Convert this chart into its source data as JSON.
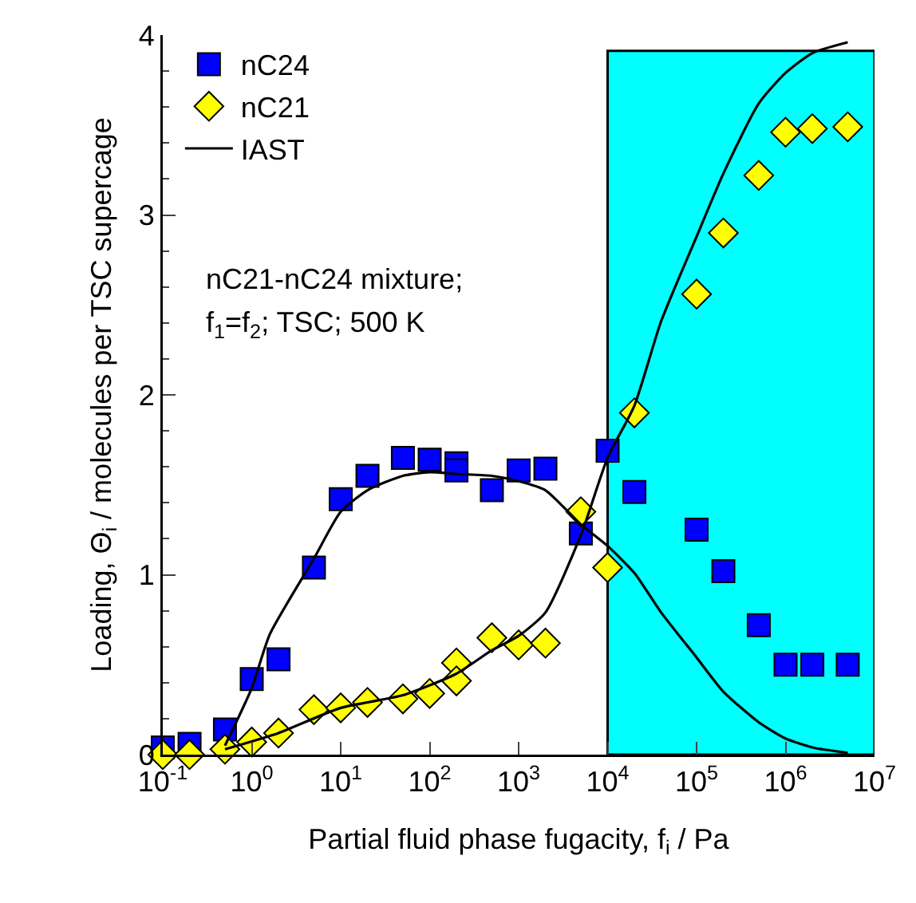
{
  "chart_data": {
    "type": "scatter",
    "xlabel": "Partial fluid phase fugacity, f$_{i}$ / Pa",
    "ylabel": "Loading, Θ$_{i}$ / molecules per TSC supercage",
    "annotations": [
      "nC21-nC24 mixture;",
      "f$_{1}$=f$_{2}$; TSC; 500 K"
    ],
    "log": "x",
    "xlim": [
      0.1,
      10000000
    ],
    "ylim": [
      0,
      4
    ],
    "xticks": [
      {
        "value": 0.1,
        "label": "10$^{-1}$"
      },
      {
        "value": 1,
        "label": "10$^{0}$"
      },
      {
        "value": 10,
        "label": "10$^{1}$"
      },
      {
        "value": 100,
        "label": "10$^{2}$"
      },
      {
        "value": 1000,
        "label": "10$^{3}$"
      },
      {
        "value": 10000,
        "label": "10$^{4}$"
      },
      {
        "value": 100000,
        "label": "10$^{5}$"
      },
      {
        "value": 1000000,
        "label": "10$^{6}$"
      },
      {
        "value": 10000000,
        "label": "10$^{7}$"
      }
    ],
    "yticks": [
      0,
      1,
      2,
      3,
      4
    ],
    "grid": false,
    "legend": "top left",
    "bands": [
      {
        "axis": "x",
        "from": 10000,
        "to": 10000000,
        "color": "#00ffff"
      }
    ],
    "series": [
      {
        "name": "nC24",
        "marker": "square",
        "color": "#0000ff",
        "x": [
          0.1,
          0.2,
          0.5,
          1,
          2,
          5,
          10,
          20,
          50,
          100,
          200,
          200,
          500,
          1000,
          2000,
          5000,
          10000,
          20000,
          100000,
          200000,
          500000,
          1000000,
          2000000,
          5000000
        ],
        "values": [
          0.04,
          0.06,
          0.14,
          0.42,
          0.53,
          1.04,
          1.42,
          1.55,
          1.65,
          1.64,
          1.62,
          1.58,
          1.47,
          1.58,
          1.59,
          1.23,
          1.69,
          1.46,
          1.25,
          1.02,
          0.72,
          0.5,
          0.5,
          0.5
        ]
      },
      {
        "name": "nC21",
        "marker": "diamond",
        "color": "#ffff00",
        "x": [
          0.1,
          0.2,
          0.5,
          1,
          2,
          5,
          10,
          20,
          50,
          100,
          200,
          200,
          500,
          1000,
          2000,
          5000,
          10000,
          20000,
          100000,
          200000,
          500000,
          1000000,
          2000000,
          5000000
        ],
        "values": [
          0,
          0,
          0.03,
          0.07,
          0.12,
          0.25,
          0.26,
          0.29,
          0.31,
          0.34,
          0.51,
          0.41,
          0.65,
          0.61,
          0.62,
          1.35,
          1.04,
          1.9,
          2.56,
          2.9,
          3.22,
          3.46,
          3.48,
          3.49
        ]
      },
      {
        "name": "IAST",
        "type": "line",
        "line_style": "solid",
        "color": "#000000",
        "x": [
          0.5,
          1,
          1.6,
          5,
          10,
          20,
          50,
          100,
          200,
          500,
          1000,
          2000,
          5000,
          10000,
          20000,
          40000,
          100000,
          200000,
          500000,
          1000000,
          2000000,
          5000000
        ],
        "values": [
          0.05,
          0.37,
          0.67,
          1.09,
          1.35,
          1.47,
          1.55,
          1.57,
          1.56,
          1.55,
          1.52,
          1.47,
          1.28,
          1.16,
          1.01,
          0.79,
          0.54,
          0.35,
          0.18,
          0.09,
          0.04,
          0.01
        ]
      },
      {
        "type": "line",
        "line_style": "solid",
        "color": "#000000",
        "x": [
          0.5,
          2,
          10,
          50,
          200,
          500,
          1000,
          2000,
          5000,
          10000,
          20000,
          40000,
          100000,
          200000,
          500000,
          1000000,
          2000000,
          5000000
        ],
        "values": [
          0.03,
          0.12,
          0.26,
          0.33,
          0.45,
          0.58,
          0.66,
          0.79,
          1.22,
          1.65,
          1.94,
          2.41,
          2.88,
          3.23,
          3.62,
          3.79,
          3.9,
          3.96
        ]
      }
    ]
  }
}
